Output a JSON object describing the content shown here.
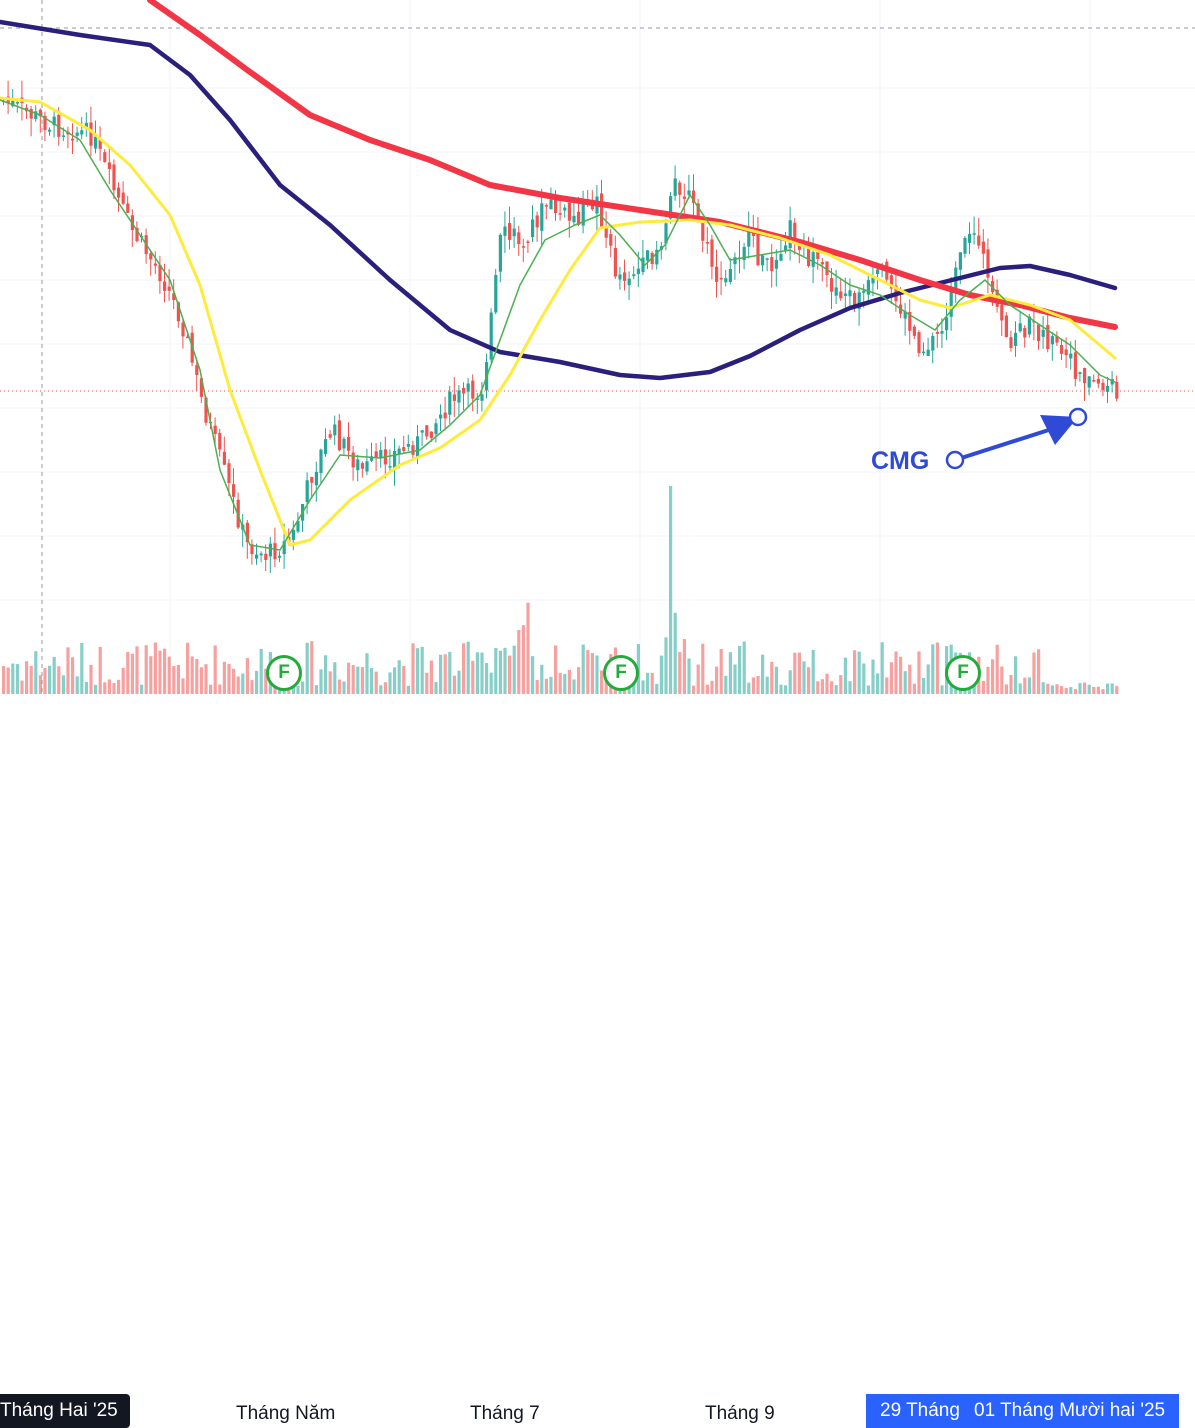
{
  "chart_data": {
    "type": "candlestick",
    "symbol_label": "CMG",
    "x_ticks": [
      "Tháng Hai '25",
      "Tháng Năm",
      "Tháng 7",
      "Tháng 9",
      "29 Tháng",
      "01 Tháng Mười hai '25"
    ],
    "event_markers": [
      "F",
      "F",
      "F"
    ],
    "colors": {
      "up": "#26a69a",
      "down": "#ef5350",
      "ma_fast": "#4caf50",
      "ma_yellow": "#ffeb3b",
      "ma_red": "#f23645",
      "ma_navy": "#2a1f7c",
      "annotation": "#2f4bd6",
      "axis_highlight": "#2962ff"
    },
    "moving_averages": [
      "fast",
      "yellow",
      "red",
      "navy"
    ],
    "grid": true,
    "legend": "none"
  }
}
